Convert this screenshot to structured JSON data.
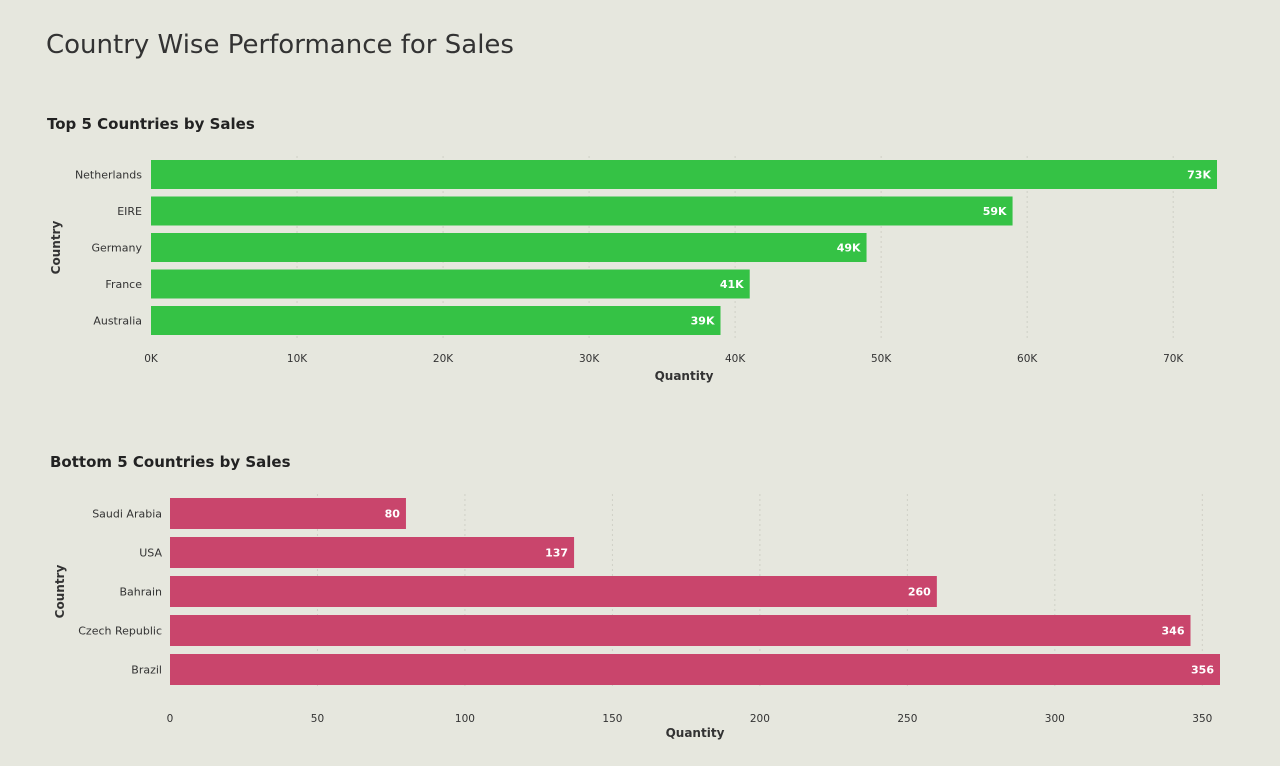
{
  "page": {
    "title": "Country Wise Performance for Sales"
  },
  "chart_data": [
    {
      "type": "bar",
      "orientation": "horizontal",
      "title": "Top 5 Countries by Sales",
      "xlabel": "Quantity",
      "ylabel": "Country",
      "categories": [
        "Netherlands",
        "EIRE",
        "Germany",
        "France",
        "Australia"
      ],
      "values": [
        73000,
        59000,
        49000,
        41000,
        39000
      ],
      "value_labels": [
        "73K",
        "59K",
        "49K",
        "41K",
        "39K"
      ],
      "xlim": [
        0,
        73000
      ],
      "ticks": [
        0,
        10000,
        20000,
        30000,
        40000,
        50000,
        60000,
        70000
      ],
      "tick_labels": [
        "0K",
        "10K",
        "20K",
        "30K",
        "40K",
        "50K",
        "60K",
        "70K"
      ],
      "color": "#35c245",
      "grid": true
    },
    {
      "type": "bar",
      "orientation": "horizontal",
      "title": "Bottom 5 Countries by Sales",
      "xlabel": "Quantity",
      "ylabel": "Country",
      "categories": [
        "Saudi Arabia",
        "USA",
        "Bahrain",
        "Czech Republic",
        "Brazil"
      ],
      "values": [
        80,
        137,
        260,
        346,
        356
      ],
      "value_labels": [
        "80",
        "137",
        "260",
        "346",
        "356"
      ],
      "xlim": [
        0,
        356
      ],
      "ticks": [
        0,
        50,
        100,
        150,
        200,
        250,
        300,
        350
      ],
      "tick_labels": [
        "0",
        "50",
        "100",
        "150",
        "200",
        "250",
        "300",
        "350"
      ],
      "color": "#c9456c",
      "grid": true
    }
  ]
}
